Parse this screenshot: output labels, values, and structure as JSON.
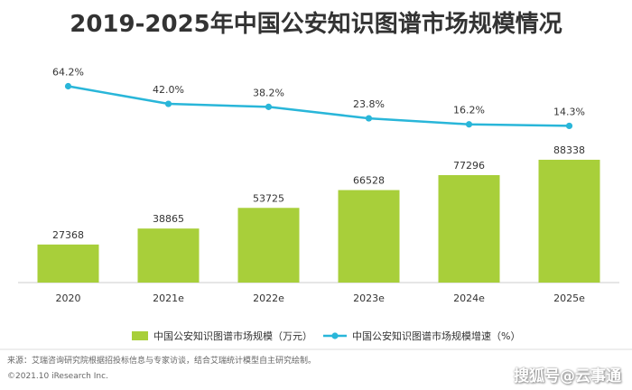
{
  "chart_data": {
    "type": "bar",
    "title": "2019-2025年中国公安知识图谱市场规模情况",
    "categories": [
      "2020",
      "2021e",
      "2022e",
      "2023e",
      "2024e",
      "2025e"
    ],
    "series": [
      {
        "name": "中国公安知识图谱市场规模（万元）",
        "type": "bar",
        "values": [
          27368,
          38865,
          53725,
          66528,
          77296,
          88338
        ],
        "labels": [
          "27368",
          "38865",
          "53725",
          "66528",
          "77296",
          "88338"
        ],
        "color": "#a8cf3a"
      },
      {
        "name": "中国公安知识图谱市场规模增速（%）",
        "type": "line",
        "values": [
          64.2,
          42.0,
          38.2,
          23.8,
          16.2,
          14.3
        ],
        "labels": [
          "64.2%",
          "42.0%",
          "38.2%",
          "23.8%",
          "16.2%",
          "14.3%"
        ],
        "color": "#29b6d9"
      }
    ],
    "ylim_bar": [
      0,
      100000
    ],
    "ylim_line": [
      0,
      100
    ],
    "grid": false,
    "legend_position": "bottom"
  },
  "footer": {
    "source": "来源：艾瑞咨询研究院根据招投标信息与专家访谈，结合艾瑞统计模型自主研究绘制。",
    "copyright": "©2021.10 iResearch Inc.",
    "watermark": "搜狐号@云事通"
  }
}
